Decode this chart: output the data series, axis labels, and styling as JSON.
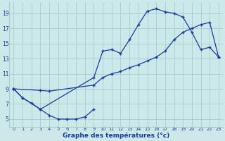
{
  "xlabel": "Graphe des températures (°c)",
  "background_color": "#cce8e8",
  "grid_color": "#aacccc",
  "line_color": "#1a3a9e",
  "xlim": [
    -0.5,
    23.5
  ],
  "ylim": [
    4,
    20.5
  ],
  "yticks": [
    5,
    7,
    9,
    11,
    13,
    15,
    17,
    19
  ],
  "xticks": [
    0,
    1,
    2,
    3,
    4,
    5,
    6,
    7,
    8,
    9,
    10,
    11,
    12,
    13,
    14,
    15,
    16,
    17,
    18,
    19,
    20,
    21,
    22,
    23
  ],
  "curve1_x": [
    0,
    1,
    2,
    3,
    4,
    5,
    6,
    7,
    8,
    9
  ],
  "curve1_y": [
    9.0,
    7.8,
    7.1,
    6.3,
    5.5,
    5.0,
    5.0,
    5.0,
    5.3,
    6.3
  ],
  "curve2_x": [
    0,
    3,
    4,
    9,
    10,
    11,
    12,
    13,
    14,
    15,
    16,
    17,
    18,
    19,
    20,
    21,
    22,
    23
  ],
  "curve2_y": [
    9.0,
    8.8,
    8.7,
    9.5,
    10.5,
    11.0,
    11.3,
    11.8,
    12.2,
    12.7,
    13.2,
    14.0,
    15.5,
    16.5,
    17.0,
    17.5,
    17.8,
    13.2
  ],
  "curve3_x": [
    0,
    1,
    3,
    9,
    10,
    11,
    12,
    13,
    14,
    15,
    16,
    17,
    18,
    19,
    20,
    21,
    22,
    23
  ],
  "curve3_y": [
    9.0,
    7.8,
    6.3,
    10.5,
    14.0,
    14.2,
    13.7,
    15.5,
    17.5,
    19.3,
    19.6,
    19.2,
    19.0,
    18.5,
    16.5,
    14.2,
    14.5,
    13.2
  ]
}
